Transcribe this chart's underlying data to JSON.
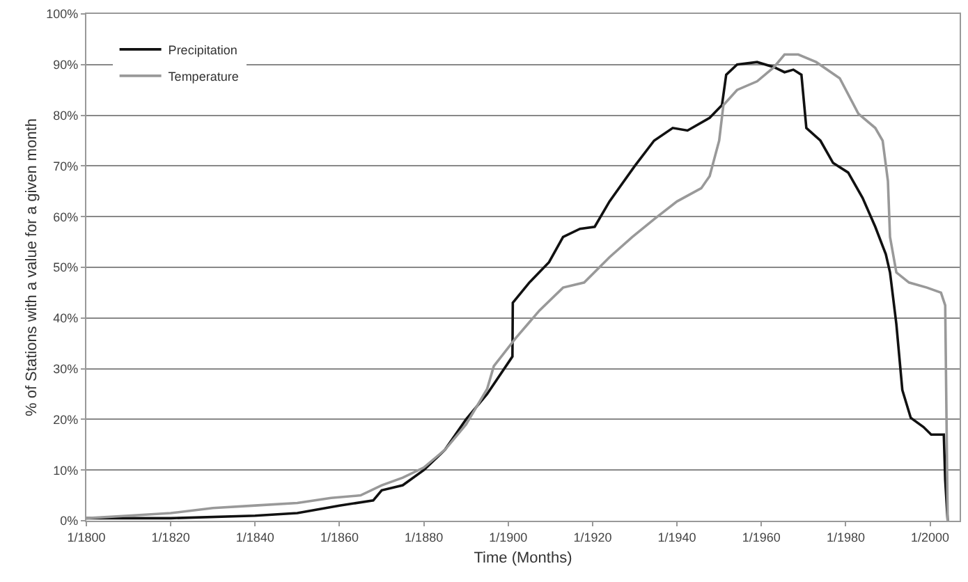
{
  "chart_data": {
    "type": "line",
    "xlabel": "Time (Months)",
    "ylabel": "% of Stations with a value for a given month",
    "series": [
      {
        "name": "Precipitation",
        "color": "#111111",
        "x": [
          "1800-01",
          "1820-01",
          "1840-01",
          "1850-01",
          "1860-01",
          "1868-01",
          "1870-01",
          "1875-01",
          "1880-01",
          "1885-01",
          "1890-01",
          "1895-01",
          "1901-01",
          "1901-02",
          "1905-01",
          "1909-09",
          "1913-01",
          "1917-01",
          "1920-07",
          "1924-01",
          "1930-01",
          "1934-08",
          "1939-01",
          "1942-07",
          "1947-10",
          "1950-09",
          "1951-09",
          "1954-04",
          "1959-01",
          "1963-01",
          "1965-07",
          "1967-08",
          "1969-07",
          "1970-09",
          "1974-01",
          "1977-01",
          "1980-08",
          "1984-01",
          "1987-01",
          "1989-07",
          "1990-07",
          "1992-01",
          "1993-06",
          "1995-06",
          "1998-06",
          "2000-04",
          "2003-04",
          "2003-08",
          "2004-03"
        ],
        "values": [
          0.5,
          0.5,
          1,
          1.5,
          3,
          4,
          6,
          7,
          10,
          14,
          20,
          25,
          32.4,
          43,
          47,
          51,
          56,
          57.6,
          58,
          63,
          70,
          75,
          77.5,
          77,
          79.5,
          82,
          88,
          90,
          90.5,
          89.5,
          88.5,
          89,
          88,
          77.5,
          75,
          70.6,
          68.7,
          63.7,
          58,
          52.6,
          49,
          38.8,
          25.8,
          20.3,
          18.5,
          17,
          17,
          8,
          0
        ]
      },
      {
        "name": "Temperature",
        "color": "#999999",
        "x": [
          "1800-01",
          "1810-01",
          "1820-01",
          "1830-01",
          "1840-01",
          "1850-01",
          "1858-01",
          "1865-01",
          "1870-01",
          "1875-01",
          "1880-01",
          "1885-01",
          "1890-01",
          "1895-01",
          "1896-08",
          "1901-10",
          "1907-06",
          "1913-01",
          "1918-01",
          "1924-01",
          "1929-06",
          "1934-08",
          "1940-01",
          "1945-10",
          "1947-10",
          "1950-01",
          "1951-01",
          "1954-04",
          "1959-01",
          "1963-01",
          "1965-07",
          "1968-10",
          "1973-01",
          "1978-08",
          "1983-01",
          "1987-01",
          "1988-10",
          "1990-01",
          "1990-07",
          "1992-01",
          "1995-01",
          "1999-04",
          "2002-08",
          "2003-08",
          "2004-03"
        ],
        "values": [
          0.5,
          1,
          1.5,
          2.5,
          3,
          3.5,
          4.5,
          5,
          7,
          8.5,
          10.5,
          14,
          19,
          26,
          30.5,
          36,
          41.5,
          46,
          47,
          52,
          56,
          59.5,
          63,
          65.6,
          68,
          75,
          82,
          85,
          86.7,
          89.5,
          92,
          92,
          90.5,
          87.3,
          80.3,
          77.5,
          75,
          67,
          56,
          49,
          47,
          46,
          45,
          42.5,
          0
        ]
      }
    ],
    "xlim": [
      "1800-01",
      "2007-01"
    ],
    "xticks": [
      {
        "value": "1800-01",
        "label": "1/1800"
      },
      {
        "value": "1820-01",
        "label": "1/1820"
      },
      {
        "value": "1840-01",
        "label": "1/1840"
      },
      {
        "value": "1860-01",
        "label": "1/1860"
      },
      {
        "value": "1880-01",
        "label": "1/1880"
      },
      {
        "value": "1900-01",
        "label": "1/1900"
      },
      {
        "value": "1920-01",
        "label": "1/1920"
      },
      {
        "value": "1940-01",
        "label": "1/1940"
      },
      {
        "value": "1960-01",
        "label": "1/1960"
      },
      {
        "value": "1980-01",
        "label": "1/1980"
      },
      {
        "value": "2000-01",
        "label": "1/2000"
      }
    ],
    "ylim": [
      0,
      100
    ],
    "yticks": [
      {
        "value": 0,
        "label": "0%"
      },
      {
        "value": 10,
        "label": "10%"
      },
      {
        "value": 20,
        "label": "20%"
      },
      {
        "value": 30,
        "label": "30%"
      },
      {
        "value": 40,
        "label": "40%"
      },
      {
        "value": 50,
        "label": "50%"
      },
      {
        "value": 60,
        "label": "60%"
      },
      {
        "value": 70,
        "label": "70%"
      },
      {
        "value": 80,
        "label": "80%"
      },
      {
        "value": 90,
        "label": "90%"
      },
      {
        "value": 100,
        "label": "100%"
      }
    ],
    "grid": "y",
    "legend": "top left",
    "marker": "none",
    "line_style": "solid"
  }
}
